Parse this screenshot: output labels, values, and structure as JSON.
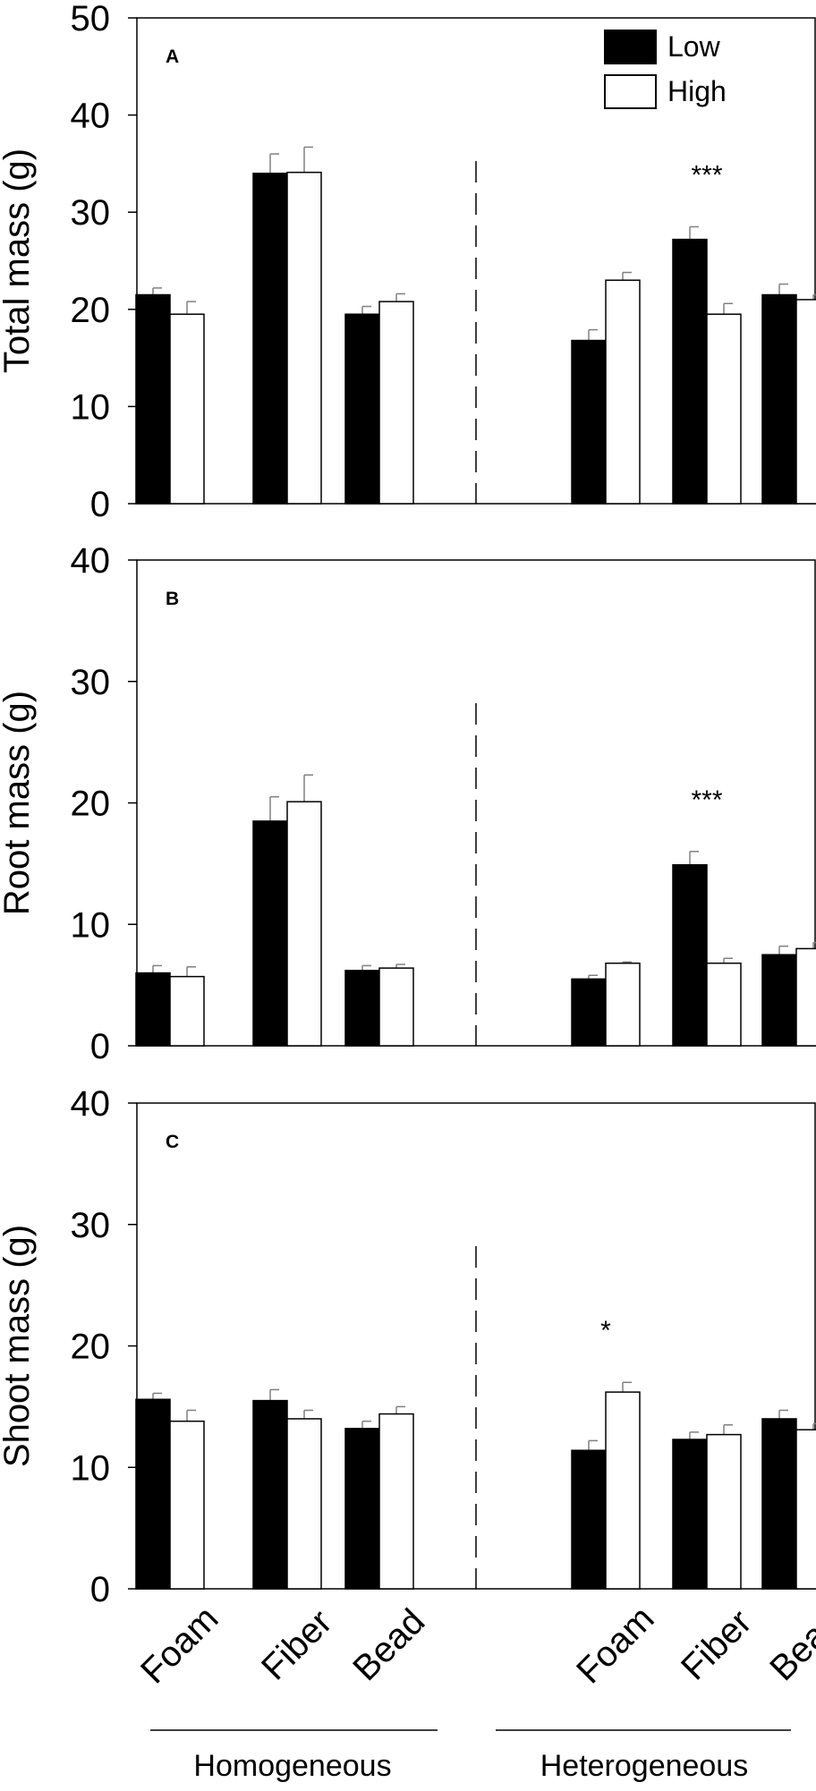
{
  "legend": {
    "items": [
      {
        "label": "Low",
        "color": "#000000"
      },
      {
        "label": "High",
        "color": "#ffffff"
      }
    ],
    "placement": "top-right"
  },
  "categories": [
    "Foam",
    "Fiber",
    "Bead",
    "Foam",
    "Fiber",
    "Bead"
  ],
  "groups": [
    "Homogeneous",
    "Heterogeneous"
  ],
  "colors": {
    "low": "#000000",
    "high": "#ffffff",
    "errorbar": "#808080",
    "axis": "#000000"
  },
  "chart_data": [
    {
      "type": "bar",
      "panel_label": "A",
      "ylabel": "Total mass (g)",
      "ylim": [
        0,
        50
      ],
      "yticks": [
        0,
        10,
        20,
        30,
        40,
        50
      ],
      "categories": [
        "Foam",
        "Fiber",
        "Bead",
        "Foam",
        "Fiber",
        "Bead"
      ],
      "series": [
        {
          "name": "Low",
          "values": [
            21.5,
            34,
            19.5,
            16.8,
            27.2,
            21.5
          ],
          "errors": [
            0.7,
            2.0,
            0.8,
            1.1,
            1.3,
            1.1
          ]
        },
        {
          "name": "High",
          "values": [
            19.5,
            34.1,
            20.8,
            23.0,
            19.5,
            21.0
          ],
          "errors": [
            1.3,
            2.6,
            0.8,
            0.8,
            1.1,
            0.5
          ]
        }
      ],
      "annotations": [
        {
          "text": "***",
          "category_index": 4
        }
      ]
    },
    {
      "type": "bar",
      "panel_label": "B",
      "ylabel": "Root mass (g)",
      "ylim": [
        0,
        40
      ],
      "yticks": [
        0,
        10,
        20,
        30,
        40
      ],
      "categories": [
        "Foam",
        "Fiber",
        "Bead",
        "Foam",
        "Fiber",
        "Bead"
      ],
      "series": [
        {
          "name": "Low",
          "values": [
            6.0,
            18.5,
            6.2,
            5.5,
            14.9,
            7.5
          ],
          "errors": [
            0.6,
            2.0,
            0.4,
            0.3,
            1.1,
            0.7
          ]
        },
        {
          "name": "High",
          "values": [
            5.7,
            20.1,
            6.4,
            6.8,
            6.8,
            8.0
          ],
          "errors": [
            0.8,
            2.2,
            0.3,
            0.1,
            0.4,
            0.5
          ]
        }
      ],
      "annotations": [
        {
          "text": "***",
          "category_index": 4
        }
      ]
    },
    {
      "type": "bar",
      "panel_label": "C",
      "ylabel": "Shoot mass (g)",
      "ylim": [
        0,
        40
      ],
      "yticks": [
        0,
        10,
        20,
        30,
        40
      ],
      "categories": [
        "Foam",
        "Fiber",
        "Bead",
        "Foam",
        "Fiber",
        "Bead"
      ],
      "series": [
        {
          "name": "Low",
          "values": [
            15.6,
            15.5,
            13.2,
            11.4,
            12.3,
            14.0
          ],
          "errors": [
            0.5,
            0.9,
            0.6,
            0.8,
            0.6,
            0.7
          ]
        },
        {
          "name": "High",
          "values": [
            13.8,
            14.0,
            14.4,
            16.2,
            12.7,
            13.1
          ],
          "errors": [
            0.9,
            0.7,
            0.6,
            0.8,
            0.8,
            0.5
          ]
        }
      ],
      "annotations": [
        {
          "text": "*",
          "category_index": 3
        }
      ]
    }
  ]
}
